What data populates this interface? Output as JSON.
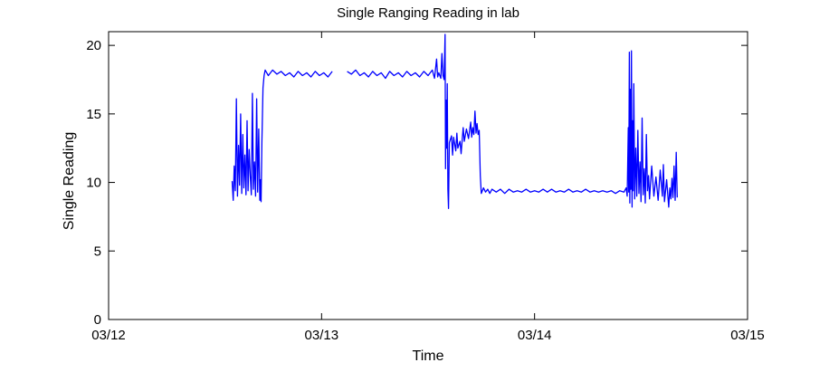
{
  "chart_data": {
    "type": "line",
    "title": "Single Ranging Reading in lab",
    "xlabel": "Time",
    "ylabel": "Single Reading",
    "xlim": [
      0,
      3
    ],
    "ylim": [
      0,
      21
    ],
    "x_ticks": [
      {
        "value": 0,
        "label": "03/12"
      },
      {
        "value": 1,
        "label": "03/13"
      },
      {
        "value": 2,
        "label": "03/14"
      },
      {
        "value": 3,
        "label": "03/15"
      }
    ],
    "y_ticks": [
      0,
      5,
      10,
      15,
      20
    ],
    "grid": false,
    "series_color": "#0000ff",
    "series": [
      {
        "segments": [
          [
            [
              0.58,
              10.1
            ],
            [
              0.585,
              8.7
            ],
            [
              0.59,
              11.2
            ],
            [
              0.595,
              9.4
            ],
            [
              0.6,
              16.1
            ],
            [
              0.605,
              9.0
            ],
            [
              0.61,
              12.7
            ],
            [
              0.615,
              9.8
            ],
            [
              0.62,
              15.0
            ],
            [
              0.625,
              9.2
            ],
            [
              0.63,
              13.5
            ],
            [
              0.635,
              9.6
            ],
            [
              0.64,
              12.0
            ],
            [
              0.645,
              9.1
            ],
            [
              0.65,
              14.5
            ],
            [
              0.655,
              9.4
            ],
            [
              0.66,
              12.4
            ],
            [
              0.665,
              10.5
            ],
            [
              0.67,
              9.1
            ],
            [
              0.675,
              16.5
            ],
            [
              0.68,
              9.5
            ],
            [
              0.685,
              11.5
            ],
            [
              0.69,
              9.0
            ],
            [
              0.695,
              16.1
            ],
            [
              0.7,
              9.3
            ],
            [
              0.705,
              13.9
            ],
            [
              0.71,
              8.7
            ],
            [
              0.713,
              10.2
            ],
            [
              0.716,
              8.6
            ],
            [
              0.72,
              13.0
            ],
            [
              0.725,
              16.9
            ],
            [
              0.73,
              17.8
            ],
            [
              0.735,
              18.2
            ],
            [
              0.75,
              17.8
            ],
            [
              0.77,
              18.2
            ],
            [
              0.79,
              17.9
            ],
            [
              0.81,
              18.1
            ],
            [
              0.83,
              17.8
            ],
            [
              0.85,
              18.0
            ],
            [
              0.87,
              17.7
            ],
            [
              0.89,
              18.1
            ],
            [
              0.91,
              17.8
            ],
            [
              0.93,
              18.0
            ],
            [
              0.95,
              17.7
            ],
            [
              0.97,
              18.1
            ],
            [
              0.99,
              17.8
            ],
            [
              1.01,
              18.0
            ],
            [
              1.03,
              17.7
            ],
            [
              1.05,
              18.1
            ]
          ],
          [
            [
              1.12,
              18.1
            ],
            [
              1.14,
              17.9
            ],
            [
              1.16,
              18.2
            ],
            [
              1.18,
              17.8
            ],
            [
              1.2,
              18.0
            ],
            [
              1.22,
              17.7
            ],
            [
              1.24,
              18.1
            ],
            [
              1.26,
              17.8
            ],
            [
              1.28,
              18.0
            ],
            [
              1.3,
              17.6
            ],
            [
              1.32,
              18.1
            ],
            [
              1.34,
              17.8
            ],
            [
              1.36,
              18.0
            ],
            [
              1.38,
              17.7
            ],
            [
              1.4,
              18.1
            ],
            [
              1.42,
              17.8
            ],
            [
              1.44,
              18.0
            ],
            [
              1.46,
              17.7
            ],
            [
              1.48,
              18.1
            ],
            [
              1.5,
              17.8
            ],
            [
              1.52,
              18.2
            ],
            [
              1.53,
              17.6
            ],
            [
              1.54,
              19.0
            ],
            [
              1.545,
              17.7
            ],
            [
              1.55,
              18.0
            ],
            [
              1.56,
              17.6
            ],
            [
              1.565,
              19.4
            ],
            [
              1.57,
              17.8
            ],
            [
              1.575,
              17.5
            ],
            [
              1.58,
              20.8
            ],
            [
              1.582,
              11.0
            ],
            [
              1.585,
              16.0
            ],
            [
              1.588,
              12.5
            ],
            [
              1.59,
              17.2
            ],
            [
              1.593,
              9.5
            ],
            [
              1.596,
              8.1
            ],
            [
              1.6,
              12.9
            ],
            [
              1.61,
              13.4
            ],
            [
              1.615,
              12.0
            ],
            [
              1.62,
              13.3
            ],
            [
              1.63,
              12.3
            ],
            [
              1.635,
              13.6
            ],
            [
              1.64,
              12.5
            ],
            [
              1.65,
              13.0
            ],
            [
              1.655,
              12.1
            ],
            [
              1.66,
              13.1
            ],
            [
              1.665,
              14.0
            ],
            [
              1.67,
              13.0
            ],
            [
              1.68,
              13.9
            ],
            [
              1.69,
              13.2
            ],
            [
              1.7,
              14.4
            ],
            [
              1.705,
              13.3
            ],
            [
              1.71,
              14.0
            ],
            [
              1.715,
              13.5
            ],
            [
              1.72,
              15.2
            ],
            [
              1.725,
              13.6
            ],
            [
              1.73,
              14.3
            ],
            [
              1.735,
              13.5
            ],
            [
              1.74,
              13.8
            ],
            [
              1.745,
              10.5
            ],
            [
              1.75,
              9.2
            ],
            [
              1.76,
              9.6
            ],
            [
              1.77,
              9.3
            ],
            [
              1.78,
              9.5
            ],
            [
              1.79,
              9.2
            ],
            [
              1.8,
              9.5
            ],
            [
              1.82,
              9.3
            ],
            [
              1.84,
              9.5
            ],
            [
              1.86,
              9.2
            ],
            [
              1.88,
              9.5
            ],
            [
              1.9,
              9.3
            ],
            [
              1.92,
              9.4
            ],
            [
              1.94,
              9.3
            ],
            [
              1.96,
              9.5
            ],
            [
              1.98,
              9.3
            ],
            [
              2.0,
              9.4
            ],
            [
              2.02,
              9.3
            ],
            [
              2.04,
              9.5
            ],
            [
              2.06,
              9.3
            ],
            [
              2.08,
              9.5
            ],
            [
              2.1,
              9.3
            ],
            [
              2.12,
              9.4
            ],
            [
              2.14,
              9.3
            ],
            [
              2.16,
              9.5
            ],
            [
              2.18,
              9.3
            ],
            [
              2.2,
              9.4
            ],
            [
              2.22,
              9.3
            ],
            [
              2.24,
              9.5
            ],
            [
              2.26,
              9.3
            ],
            [
              2.28,
              9.4
            ],
            [
              2.3,
              9.3
            ],
            [
              2.32,
              9.4
            ],
            [
              2.34,
              9.3
            ],
            [
              2.36,
              9.4
            ],
            [
              2.38,
              9.2
            ],
            [
              2.4,
              9.4
            ],
            [
              2.42,
              9.3
            ],
            [
              2.43,
              9.6
            ],
            [
              2.435,
              9.0
            ],
            [
              2.44,
              14.0
            ],
            [
              2.442,
              9.3
            ],
            [
              2.445,
              19.5
            ],
            [
              2.447,
              8.5
            ],
            [
              2.45,
              16.8
            ],
            [
              2.452,
              9.5
            ],
            [
              2.455,
              19.6
            ],
            [
              2.458,
              8.2
            ],
            [
              2.46,
              14.5
            ],
            [
              2.463,
              9.4
            ],
            [
              2.466,
              17.2
            ],
            [
              2.47,
              8.8
            ],
            [
              2.475,
              12.5
            ],
            [
              2.48,
              9.0
            ],
            [
              2.485,
              13.8
            ],
            [
              2.49,
              9.2
            ],
            [
              2.495,
              11.5
            ],
            [
              2.5,
              8.6
            ],
            [
              2.505,
              14.7
            ],
            [
              2.51,
              9.1
            ],
            [
              2.515,
              11.0
            ],
            [
              2.52,
              8.5
            ],
            [
              2.525,
              13.5
            ],
            [
              2.53,
              9.4
            ],
            [
              2.535,
              10.5
            ],
            [
              2.54,
              8.8
            ],
            [
              2.55,
              11.2
            ],
            [
              2.56,
              9.0
            ],
            [
              2.57,
              10.4
            ],
            [
              2.58,
              8.7
            ],
            [
              2.59,
              10.9
            ],
            [
              2.6,
              9.0
            ],
            [
              2.605,
              11.3
            ],
            [
              2.61,
              8.6
            ],
            [
              2.62,
              10.2
            ],
            [
              2.63,
              8.2
            ],
            [
              2.635,
              9.6
            ],
            [
              2.64,
              8.8
            ],
            [
              2.645,
              10.3
            ],
            [
              2.65,
              8.9
            ],
            [
              2.655,
              11.2
            ],
            [
              2.66,
              8.7
            ],
            [
              2.665,
              12.2
            ],
            [
              2.67,
              8.9
            ]
          ]
        ]
      }
    ]
  }
}
